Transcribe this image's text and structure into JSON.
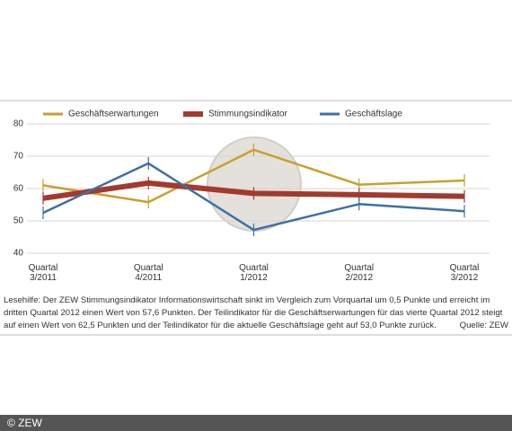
{
  "chart_data": {
    "type": "line",
    "categories": [
      "Quartal 3/2011",
      "Quartal 4/2011",
      "Quartal 1/2012",
      "Quartal 2/2012",
      "Quartal 3/2012"
    ],
    "series": [
      {
        "name": "Geschäftserwartungen",
        "color": "#c9a02c",
        "width": 2.5,
        "values": [
          61,
          55.8,
          72,
          61.2,
          62.5
        ]
      },
      {
        "name": "Stimmungsindikator",
        "color": "#a33a2e",
        "width": 6,
        "values": [
          57,
          61.7,
          58.5,
          58.1,
          57.6
        ]
      },
      {
        "name": "Geschäftslage",
        "color": "#3f6fa5",
        "width": 2.5,
        "values": [
          52.5,
          67.8,
          47.2,
          55.2,
          53.0
        ]
      }
    ],
    "ylim": [
      40,
      80
    ],
    "yticks": [
      40,
      50,
      60,
      70,
      80
    ],
    "grid": true,
    "caption": "Lesehilfe: Der ZEW Stimmungsindikator Informationswirtschaft sinkt im Vergleich zum Vorquartal um 0,5 Punkte und erreicht im dritten Quartal 2012 einen Wert von 57,6 Punkten. Der Teilindikator für die Geschäftserwartungen für das vierte Quartal 2012 steigt auf einen Wert von 62,5 Punkten und der Teilindikator für die aktuelle Geschäftslage geht auf 53,0 Punkte zurück.",
    "source": "Quelle: ZEW",
    "copyright": "© ZEW"
  }
}
